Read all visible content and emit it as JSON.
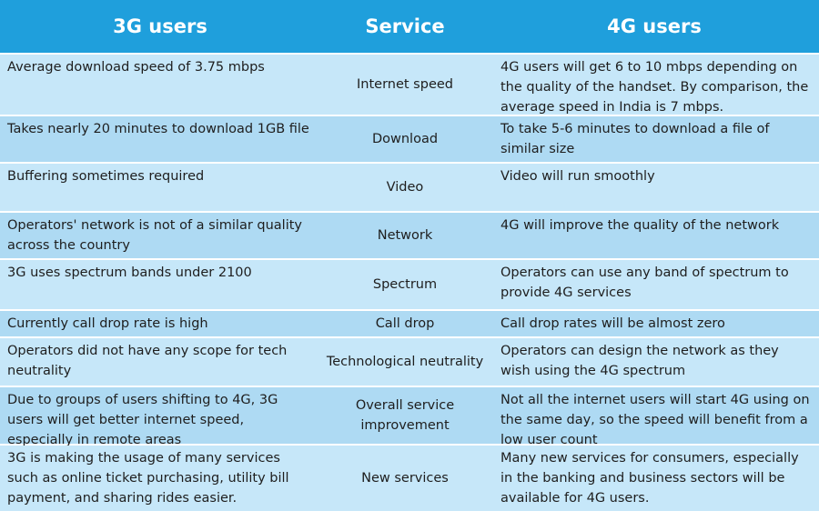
{
  "header": {
    "col1": "3G users",
    "col2": "Service",
    "col3": "4G users"
  },
  "rows": [
    {
      "left": "Average download speed of 3.75 mbps",
      "service": "Internet speed",
      "right": "4G users will get 6 to 10 mbps depending on the quality of the handset. By comparison, the average speed in India is 7 mbps."
    },
    {
      "left": "Takes nearly 20 minutes to download 1GB file",
      "service": "Download",
      "right": "To take 5-6 minutes to download a file of similar size"
    },
    {
      "left": "Buffering sometimes required",
      "service": "Video",
      "right": "Video will run smoothly"
    },
    {
      "left": "Operators' network is not of a similar quality across the country",
      "service": "Network",
      "right": "4G will improve the quality of the network"
    },
    {
      "left": "3G uses spectrum bands under 2100",
      "service": "Spectrum",
      "right": "Operators can use any band of spectrum to provide 4G services"
    },
    {
      "left": "Currently call drop rate is high",
      "service": "Call drop",
      "right": "Call drop rates will be almost zero"
    },
    {
      "left": "Operators did not have any scope for tech neutrality",
      "service": "Technological neutrality",
      "right": "Operators can design the network as they wish using the 4G spectrum"
    },
    {
      "left": "Due to groups of users shifting to 4G, 3G users will get better internet speed, especially in remote areas",
      "service": "Overall service improvement",
      "right": "Not all the internet users will start 4G using on the same day, so the speed will benefit from a low user count"
    },
    {
      "left": "3G is making the usage of many services such as online ticket purchasing, utility bill payment, and sharing rides easier.",
      "service": "New services",
      "right": "Many new services for consumers, especially in the banking and business sectors will be available for 4G users."
    }
  ]
}
